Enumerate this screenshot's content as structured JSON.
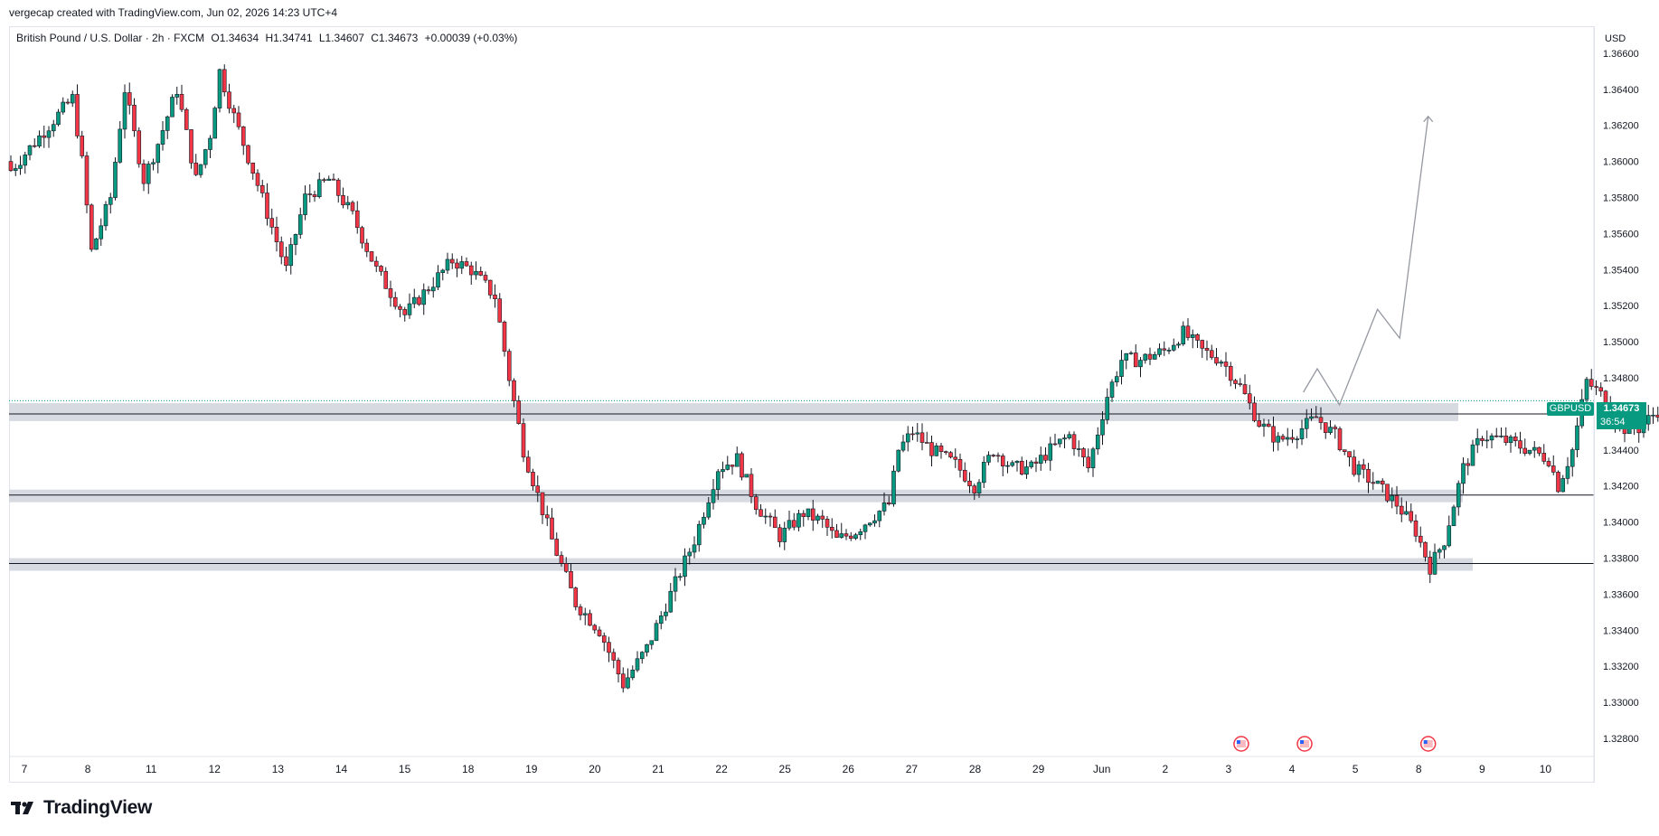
{
  "header": {
    "credit": "vergecap created with TradingView.com, Jun 02, 2026 14:23 UTC+4"
  },
  "legend": {
    "symbol": "British Pound / U.S. Dollar · 2h · FXCM",
    "open": "O1.34634",
    "high": "H1.34741",
    "low": "L1.34607",
    "close": "C1.34673",
    "change": "+0.00039 (+0.03%)"
  },
  "price_scale": {
    "currency": "USD"
  },
  "last_price": {
    "symbol": "GBPUSD",
    "value": "1.34673",
    "countdown": "36:54"
  },
  "brand": {
    "name": "TradingView"
  },
  "colors": {
    "up": "#089981",
    "down": "#f23645",
    "zone": "#d1d4dc",
    "projection": "#9598a1",
    "axis_text": "#131722"
  },
  "chart_data": {
    "type": "candlestick",
    "ylim": [
      1.327,
      1.3675
    ],
    "y_ticks": [
      "1.32800",
      "1.33000",
      "1.33200",
      "1.33400",
      "1.33600",
      "1.33800",
      "1.34000",
      "1.34200",
      "1.34400",
      "1.34600",
      "1.34800",
      "1.35000",
      "1.35200",
      "1.35400",
      "1.35600",
      "1.35800",
      "1.36000",
      "1.36200",
      "1.36400",
      "1.36600"
    ],
    "x_ticks": [
      "7",
      "8",
      "11",
      "12",
      "13",
      "14",
      "15",
      "18",
      "19",
      "20",
      "21",
      "22",
      "25",
      "26",
      "27",
      "28",
      "29",
      "Jun",
      "2",
      "3",
      "4",
      "5",
      "8",
      "9",
      "10"
    ],
    "waypoints": [
      [
        0,
        1.3595
      ],
      [
        8,
        1.362
      ],
      [
        13,
        1.3635
      ],
      [
        15,
        1.36
      ],
      [
        17,
        1.355
      ],
      [
        21,
        1.358
      ],
      [
        24,
        1.364
      ],
      [
        28,
        1.359
      ],
      [
        31,
        1.361
      ],
      [
        35,
        1.364
      ],
      [
        39,
        1.359
      ],
      [
        42,
        1.3615
      ],
      [
        44,
        1.365
      ],
      [
        47,
        1.3625
      ],
      [
        51,
        1.3595
      ],
      [
        58,
        1.354
      ],
      [
        62,
        1.358
      ],
      [
        67,
        1.359
      ],
      [
        72,
        1.357
      ],
      [
        77,
        1.354
      ],
      [
        83,
        1.3515
      ],
      [
        88,
        1.353
      ],
      [
        93,
        1.3545
      ],
      [
        97,
        1.354
      ],
      [
        102,
        1.3525
      ],
      [
        105,
        1.348
      ],
      [
        108,
        1.344
      ],
      [
        114,
        1.339
      ],
      [
        119,
        1.3355
      ],
      [
        124,
        1.334
      ],
      [
        129,
        1.331
      ],
      [
        134,
        1.333
      ],
      [
        139,
        1.336
      ],
      [
        144,
        1.339
      ],
      [
        149,
        1.343
      ],
      [
        153,
        1.3435
      ],
      [
        157,
        1.341
      ],
      [
        162,
        1.3392
      ],
      [
        167,
        1.3405
      ],
      [
        171,
        1.34
      ],
      [
        174,
        1.339
      ],
      [
        178,
        1.3395
      ],
      [
        181,
        1.3402
      ],
      [
        185,
        1.341
      ],
      [
        187,
        1.344
      ],
      [
        190,
        1.345
      ],
      [
        194,
        1.344
      ],
      [
        199,
        1.3432
      ],
      [
        203,
        1.342
      ],
      [
        207,
        1.344
      ],
      [
        211,
        1.343
      ],
      [
        215,
        1.343
      ],
      [
        219,
        1.344
      ],
      [
        223,
        1.3448
      ],
      [
        227,
        1.343
      ],
      [
        231,
        1.347
      ],
      [
        234,
        1.349
      ],
      [
        238,
        1.349
      ],
      [
        243,
        1.3495
      ],
      [
        247,
        1.3505
      ],
      [
        251,
        1.3495
      ],
      [
        255,
        1.349
      ],
      [
        259,
        1.3475
      ],
      [
        263,
        1.3455
      ],
      [
        267,
        1.3445
      ],
      [
        271,
        1.345
      ],
      [
        275,
        1.3458
      ],
      [
        279,
        1.3448
      ],
      [
        283,
        1.343
      ],
      [
        288,
        1.342
      ],
      [
        292,
        1.341
      ],
      [
        296,
        1.3395
      ],
      [
        299,
        1.3375
      ],
      [
        302,
        1.339
      ],
      [
        306,
        1.343
      ],
      [
        310,
        1.3448
      ],
      [
        315,
        1.3445
      ],
      [
        320,
        1.344
      ],
      [
        324,
        1.3435
      ],
      [
        326,
        1.342
      ],
      [
        329,
        1.344
      ],
      [
        332,
        1.3478
      ],
      [
        336,
        1.3468
      ],
      [
        339,
        1.3452
      ],
      [
        343,
        1.3452
      ],
      [
        347,
        1.3462
      ],
      [
        350,
        1.347
      ],
      [
        353,
        1.3462
      ],
      [
        356,
        1.3455
      ],
      [
        358,
        1.344
      ],
      [
        362,
        1.3455
      ],
      [
        366,
        1.3455
      ],
      [
        369,
        1.3457
      ],
      [
        372,
        1.347
      ],
      [
        374,
        1.3467
      ]
    ],
    "zones": [
      {
        "low": 1.3456,
        "high": 1.3466,
        "line": 1.346
      },
      {
        "low": 1.3411,
        "high": 1.3418,
        "line": 1.3415
      },
      {
        "low": 1.3373,
        "high": 1.338,
        "line": 1.3377
      }
    ],
    "projection": [
      {
        "day": 20.18,
        "price": 1.3472
      },
      {
        "day": 20.4,
        "price": 1.3485
      },
      {
        "day": 20.75,
        "price": 1.3465
      },
      {
        "day": 21.35,
        "price": 1.3518
      },
      {
        "day": 21.7,
        "price": 1.3502
      },
      {
        "day": 22.15,
        "price": 1.3625
      }
    ],
    "last_price": 1.34673,
    "event_days": [
      19.2,
      20.2,
      22.15
    ]
  }
}
